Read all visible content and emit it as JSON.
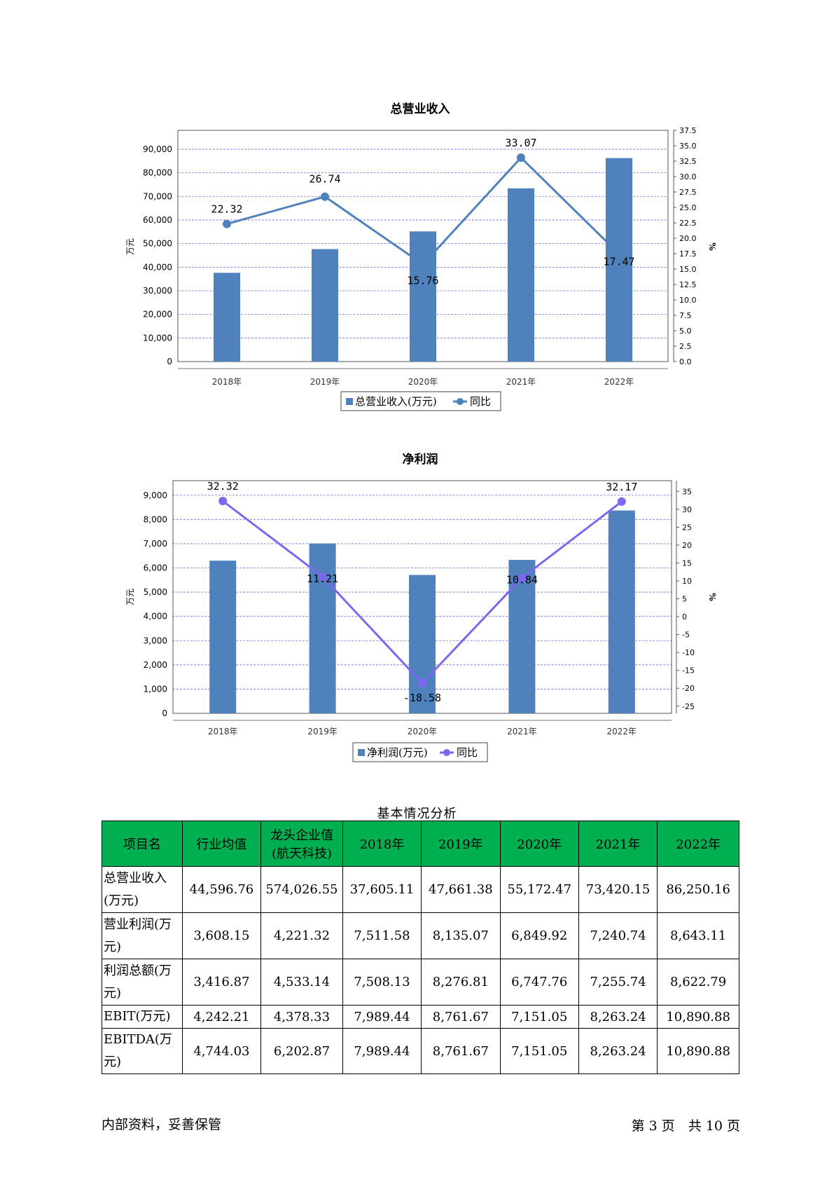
{
  "chart_data": [
    {
      "type": "bar",
      "title": "总营业收入",
      "categories": [
        "2018年",
        "2019年",
        "2020年",
        "2021年",
        "2022年"
      ],
      "series": [
        {
          "name": "总营业收入(万元)",
          "type": "bar",
          "axis": "left",
          "values": [
            37605.11,
            47661.38,
            55172.47,
            73420.15,
            86250.16
          ]
        },
        {
          "name": "同比",
          "type": "line",
          "axis": "right",
          "values": [
            22.32,
            26.74,
            15.76,
            33.07,
            17.47
          ],
          "labels": [
            "22.32",
            "26.74",
            "15.76",
            "33.07",
            "17.47"
          ]
        }
      ],
      "ylabel": "万元",
      "ylabel_right": "%",
      "ylim": [
        0,
        98000
      ],
      "yticks": [
        "0",
        "10,000",
        "20,000",
        "30,000",
        "40,000",
        "50,000",
        "60,000",
        "70,000",
        "80,000",
        "90,000"
      ],
      "ylim_right": [
        0,
        37.5
      ],
      "yticks_right": [
        "0.0",
        "2.5",
        "5.0",
        "7.5",
        "10.0",
        "12.5",
        "15.0",
        "17.5",
        "20.0",
        "22.5",
        "25.0",
        "27.5",
        "30.0",
        "32.5",
        "35.0",
        "37.5"
      ],
      "grid": true,
      "legend_position": "bottom",
      "colors": {
        "bar": "#4f81bd",
        "line": "#4f81bd"
      }
    },
    {
      "type": "bar",
      "title": "净利润",
      "categories": [
        "2018年",
        "2019年",
        "2020年",
        "2021年",
        "2022年"
      ],
      "series": [
        {
          "name": "净利润(万元)",
          "type": "bar",
          "axis": "left",
          "values": [
            6300,
            7010,
            5710,
            6330,
            8370
          ]
        },
        {
          "name": "同比",
          "type": "line",
          "axis": "right",
          "values": [
            32.32,
            11.21,
            -18.58,
            10.84,
            32.17
          ],
          "labels": [
            "32.32",
            "11.21",
            "-18.58",
            "10.84",
            "32.17"
          ]
        }
      ],
      "ylabel": "万元",
      "ylabel_right": "%",
      "ylim": [
        0,
        9600
      ],
      "yticks": [
        "0",
        "1,000",
        "2,000",
        "3,000",
        "4,000",
        "5,000",
        "6,000",
        "7,000",
        "8,000",
        "9,000"
      ],
      "ylim_right": [
        -27,
        38
      ],
      "yticks_right": [
        "-25",
        "-20",
        "-15",
        "-10",
        "-5",
        "0",
        "5",
        "10",
        "15",
        "20",
        "25",
        "30",
        "35"
      ],
      "grid": true,
      "legend_position": "bottom",
      "colors": {
        "bar": "#4f81bd",
        "line": "#7b68ee"
      }
    }
  ],
  "table": {
    "caption": "基本情况分析",
    "headers": [
      "项目名",
      "行业均值",
      "龙头企业值(航天科技)",
      "2018年",
      "2019年",
      "2020年",
      "2021年",
      "2022年"
    ],
    "rows": [
      {
        "name": "总营业收入(万元)",
        "values": [
          "44,596.76",
          "574,026.55",
          "37,605.11",
          "47,661.38",
          "55,172.47",
          "73,420.15",
          "86,250.16"
        ]
      },
      {
        "name": "营业利润(万元)",
        "values": [
          "3,608.15",
          "4,221.32",
          "7,511.58",
          "8,135.07",
          "6,849.92",
          "7,240.74",
          "8,643.11"
        ]
      },
      {
        "name": "利润总额(万元)",
        "values": [
          "3,416.87",
          "4,533.14",
          "7,508.13",
          "8,276.81",
          "6,747.76",
          "7,255.74",
          "8,622.79"
        ]
      },
      {
        "name": "EBIT(万元)",
        "values": [
          "4,242.21",
          "4,378.33",
          "7,989.44",
          "8,761.67",
          "7,151.05",
          "8,263.24",
          "10,890.88"
        ]
      },
      {
        "name": "EBITDA(万元)",
        "values": [
          "4,744.03",
          "6,202.87",
          "7,989.44",
          "8,761.67",
          "7,151.05",
          "8,263.24",
          "10,890.88"
        ]
      }
    ]
  },
  "footer": {
    "left": "内部资料，妥善保管",
    "right": "第 3 页　共 10 页"
  }
}
